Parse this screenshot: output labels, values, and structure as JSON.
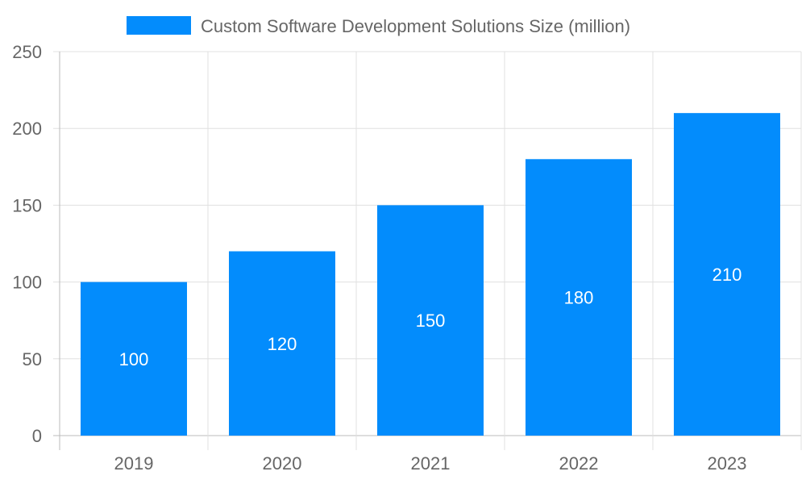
{
  "chart_data": {
    "type": "bar",
    "categories": [
      "2019",
      "2020",
      "2021",
      "2022",
      "2023"
    ],
    "series": [
      {
        "name": "Custom Software Development Solutions Size (million)",
        "values": [
          100,
          120,
          150,
          180,
          210
        ],
        "color": "#038cfc"
      }
    ],
    "data_labels": [
      "100",
      "120",
      "150",
      "180",
      "210"
    ],
    "ylim": [
      0,
      250
    ],
    "yticks": [
      "0",
      "50",
      "100",
      "150",
      "200",
      "250"
    ],
    "grid": true,
    "legend": "top-center"
  }
}
